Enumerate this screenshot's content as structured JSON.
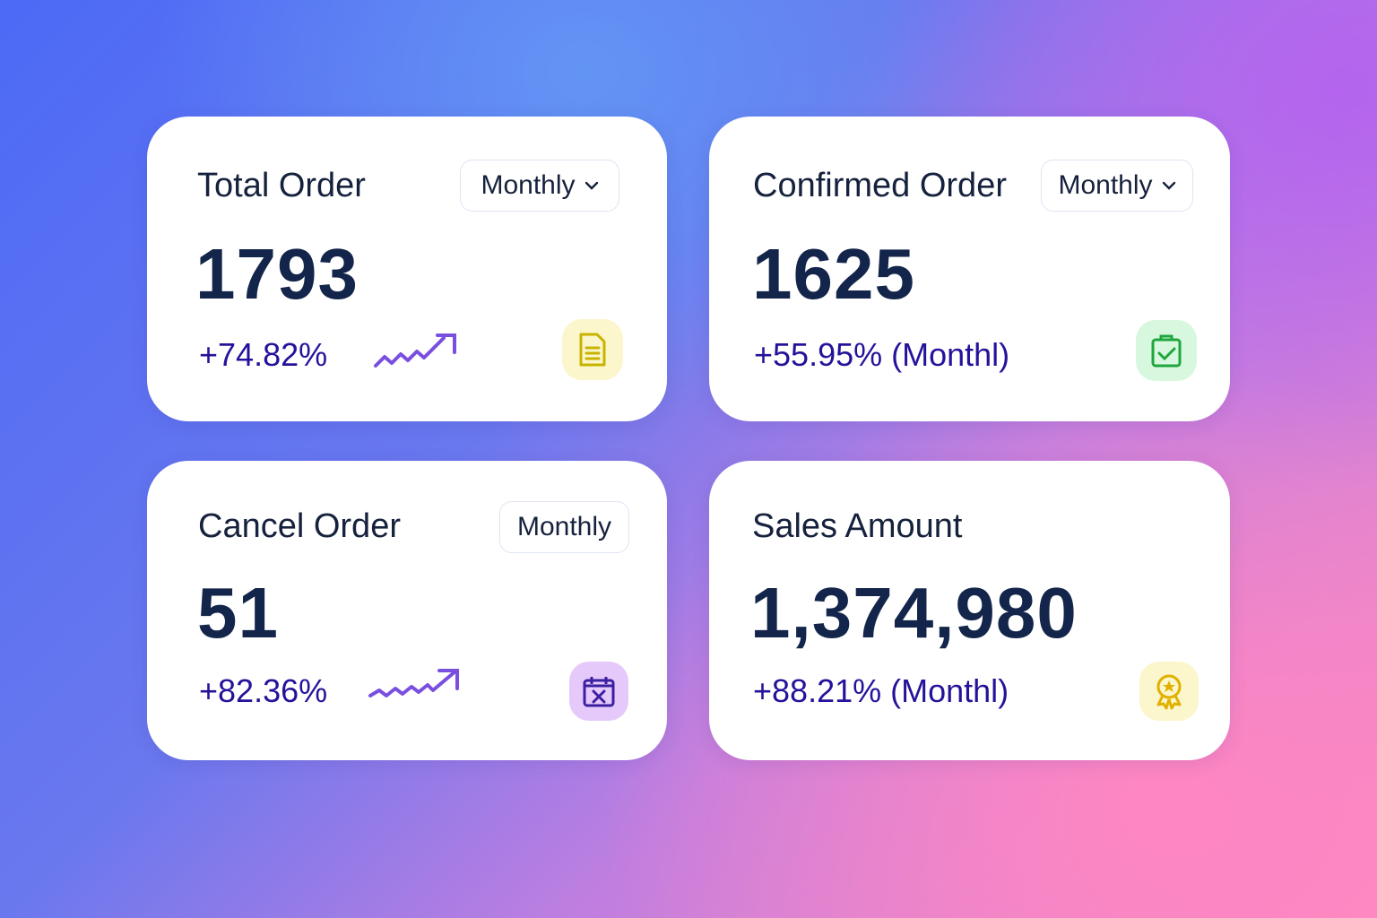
{
  "cards": [
    {
      "title": "Total Order",
      "value": "1793",
      "change": "+74.82%",
      "period": "Monthly",
      "icon": "document-icon",
      "color": "#c8b400"
    },
    {
      "title": "Confirmed Order",
      "value": "1625",
      "change": "+55.95% (Monthl)",
      "period": "Monthly",
      "icon": "clipboard-check-icon",
      "color": "#1fa63c"
    },
    {
      "title": "Cancel Order",
      "value": "51",
      "change": "+82.36%",
      "period": "Monthly",
      "icon": "calendar-x-icon",
      "color": "#3a1fa0"
    },
    {
      "title": "Sales Amount",
      "value": "1,374,980",
      "change": "+88.21% (Monthl)",
      "icon": "award-icon",
      "color": "#e2b000"
    }
  ],
  "colors": {
    "trend": "#7a4fe0"
  }
}
